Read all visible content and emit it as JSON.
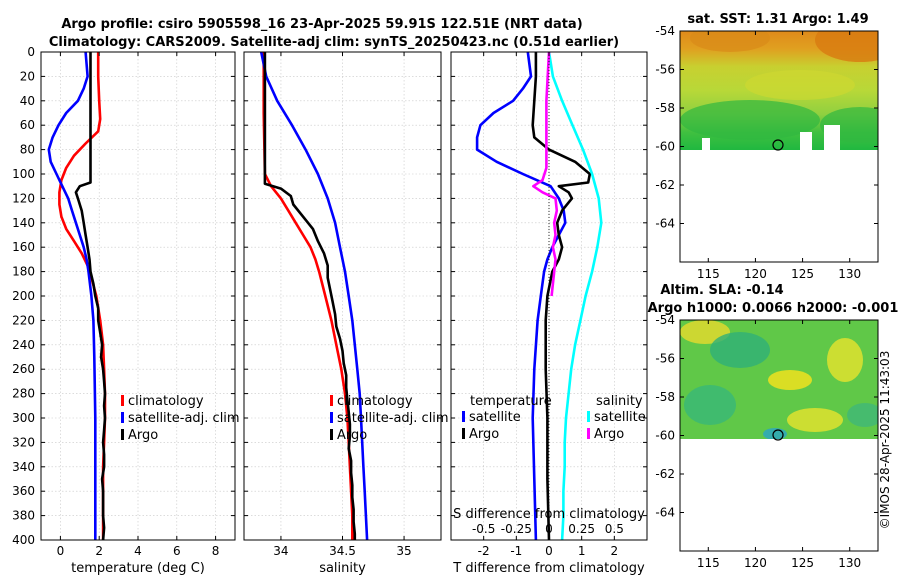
{
  "title_line1": "Argo profile: csiro 5905598_16 23-Apr-2025 59.91S 122.51E (NRT data)",
  "title_line2": "Climatology: CARS2009. Satellite-adj clim: synTS_20250423.nc (0.51d earlier)",
  "credit": "©IMOS 28-Apr-2025 11:43:03",
  "colors": {
    "climatology": "#ff0000",
    "satellite": "#0000ff",
    "argo": "#000000",
    "sat_salinity": "#00ffff",
    "argo_salinity": "#ff00ff"
  },
  "chart_data": [
    {
      "id": "temperature",
      "type": "line",
      "xlabel": "temperature (deg C)",
      "ylabel": "",
      "xlim": [
        -1,
        9
      ],
      "ylim": [
        400,
        0
      ],
      "xticks": [
        0,
        2,
        4,
        6,
        8
      ],
      "xtick_labels": [
        "0",
        "2",
        "4",
        "6",
        "8"
      ],
      "yticks": [
        0,
        20,
        40,
        60,
        80,
        100,
        120,
        140,
        160,
        180,
        200,
        220,
        240,
        260,
        280,
        300,
        320,
        340,
        360,
        380,
        400
      ],
      "ytick_labels": [
        "0",
        "20",
        "40",
        "60",
        "80",
        "100",
        "120",
        "140",
        "160",
        "180",
        "200",
        "220",
        "240",
        "260",
        "280",
        "300",
        "320",
        "340",
        "360",
        "380",
        "400"
      ],
      "grid": true,
      "legend_position": "bottom-right",
      "series": [
        {
          "name": "climatology",
          "color": "#ff0000",
          "depth": [
            0,
            20,
            40,
            55,
            65,
            75,
            85,
            95,
            105,
            115,
            125,
            135,
            145,
            155,
            165,
            175,
            185,
            200,
            220,
            240,
            260,
            280,
            300,
            320,
            340,
            360,
            380,
            400
          ],
          "values": [
            1.95,
            1.95,
            2.0,
            2.05,
            1.95,
            1.3,
            0.7,
            0.3,
            0.05,
            -0.05,
            -0.05,
            0.05,
            0.3,
            0.7,
            1.1,
            1.4,
            1.6,
            1.85,
            2.05,
            2.2,
            2.25,
            2.3,
            2.3,
            2.25,
            2.2,
            2.2,
            2.2,
            2.2
          ]
        },
        {
          "name": "satellite-adj. clim",
          "color": "#0000ff",
          "depth": [
            0,
            10,
            20,
            30,
            40,
            50,
            60,
            70,
            80,
            90,
            100,
            110,
            120,
            130,
            140,
            150,
            160,
            170,
            180,
            200,
            220,
            250,
            300,
            350,
            400
          ],
          "values": [
            1.3,
            1.35,
            1.4,
            1.2,
            0.9,
            0.3,
            -0.1,
            -0.4,
            -0.6,
            -0.5,
            -0.2,
            0.1,
            0.4,
            0.6,
            0.8,
            1.0,
            1.2,
            1.35,
            1.45,
            1.6,
            1.7,
            1.75,
            1.8,
            1.8,
            1.8
          ]
        },
        {
          "name": "Argo",
          "color": "#000000",
          "depth": [
            0,
            20,
            40,
            60,
            80,
            100,
            107,
            110,
            115,
            120,
            130,
            140,
            150,
            160,
            170,
            180,
            190,
            200,
            210,
            220,
            230,
            240,
            250,
            260,
            270,
            280,
            290,
            300,
            310,
            320,
            330,
            340,
            350,
            360,
            370,
            380,
            390,
            400
          ],
          "values": [
            1.55,
            1.55,
            1.55,
            1.55,
            1.55,
            1.55,
            1.55,
            1.0,
            0.8,
            0.9,
            1.1,
            1.2,
            1.3,
            1.4,
            1.5,
            1.55,
            1.7,
            1.8,
            1.95,
            1.95,
            2.05,
            2.15,
            2.1,
            2.2,
            2.25,
            2.3,
            2.25,
            2.3,
            2.25,
            2.2,
            2.25,
            2.25,
            2.15,
            2.2,
            2.2,
            2.2,
            2.25,
            2.2
          ]
        }
      ]
    },
    {
      "id": "salinity",
      "type": "line",
      "xlabel": "salinity",
      "xlim": [
        33.7,
        35.3
      ],
      "ylim": [
        400,
        0
      ],
      "xticks": [
        34,
        34.5,
        35
      ],
      "xtick_labels": [
        "34",
        "34.5",
        "35"
      ],
      "grid": true,
      "legend_position": "bottom-right",
      "series": [
        {
          "name": "climatology",
          "color": "#ff0000",
          "depth": [
            0,
            50,
            100,
            110,
            120,
            130,
            140,
            150,
            160,
            170,
            180,
            200,
            220,
            240,
            260,
            280,
            300,
            320,
            340,
            360,
            380,
            400
          ],
          "values": [
            33.86,
            33.86,
            33.87,
            33.92,
            34.0,
            34.06,
            34.12,
            34.18,
            34.24,
            34.28,
            34.31,
            34.36,
            34.41,
            34.45,
            34.49,
            34.52,
            34.54,
            34.55,
            34.56,
            34.57,
            34.58,
            34.58
          ]
        },
        {
          "name": "satellite-adj. clim",
          "color": "#0000ff",
          "depth": [
            0,
            20,
            40,
            60,
            80,
            100,
            120,
            140,
            160,
            180,
            200,
            220,
            240,
            260,
            280,
            300,
            320,
            340,
            360,
            380,
            400
          ],
          "values": [
            33.84,
            33.88,
            33.97,
            34.09,
            34.2,
            34.3,
            34.38,
            34.44,
            34.48,
            34.52,
            34.55,
            34.58,
            34.6,
            34.62,
            34.64,
            34.65,
            34.66,
            34.67,
            34.68,
            34.69,
            34.7
          ]
        },
        {
          "name": "Argo",
          "color": "#000000",
          "depth": [
            0,
            50,
            100,
            108,
            112,
            118,
            125,
            135,
            145,
            155,
            165,
            175,
            185,
            195,
            205,
            215,
            225,
            235,
            245,
            255,
            265,
            275,
            285,
            295,
            305,
            315,
            325,
            335,
            345,
            355,
            365,
            375,
            385,
            395,
            400
          ],
          "values": [
            33.87,
            33.87,
            33.87,
            33.87,
            34.0,
            34.08,
            34.1,
            34.18,
            34.26,
            34.3,
            34.35,
            34.38,
            34.38,
            34.4,
            34.42,
            34.44,
            34.45,
            34.48,
            34.5,
            34.51,
            34.53,
            34.53,
            34.54,
            34.55,
            34.56,
            34.56,
            34.55,
            34.57,
            34.57,
            34.58,
            34.58,
            34.59,
            34.59,
            34.6,
            34.6
          ]
        }
      ]
    },
    {
      "id": "difference",
      "type": "line",
      "xlabel": "T difference from climatology",
      "top_label": "S difference from climatology",
      "xlim": [
        -3,
        3
      ],
      "ylim": [
        400,
        0
      ],
      "xticks": [
        -2,
        -1,
        0,
        1,
        2
      ],
      "xtick_labels": [
        "-2",
        "-1",
        "0",
        "1",
        "2"
      ],
      "top_ticks": [
        -0.5,
        -0.25,
        0,
        0.25,
        0.5
      ],
      "top_tick_labels": [
        "-0.5",
        "-0.25",
        "0",
        "0.25",
        "0.5"
      ],
      "grid": true,
      "legend_groups": [
        {
          "title": "temperature",
          "entries": [
            "satellite",
            "Argo"
          ]
        },
        {
          "title": "salinity",
          "entries": [
            "satellite",
            "Argo"
          ]
        }
      ],
      "series": [
        {
          "name": "temperature satellite",
          "color": "#0000ff",
          "depth": [
            0,
            10,
            20,
            30,
            40,
            50,
            60,
            70,
            80,
            90,
            100,
            110,
            120,
            130,
            140,
            150,
            160,
            170,
            180,
            200,
            220,
            260,
            300,
            350,
            400
          ],
          "values": [
            -0.65,
            -0.6,
            -0.55,
            -0.8,
            -1.1,
            -1.7,
            -2.1,
            -2.2,
            -2.2,
            -1.6,
            -0.8,
            0.05,
            0.3,
            0.45,
            0.5,
            0.3,
            0.1,
            -0.05,
            -0.15,
            -0.25,
            -0.35,
            -0.45,
            -0.5,
            -0.45,
            -0.4
          ]
        },
        {
          "name": "temperature Argo",
          "color": "#000000",
          "depth": [
            0,
            20,
            40,
            60,
            70,
            80,
            90,
            100,
            107,
            110,
            115,
            120,
            130,
            140,
            150,
            160,
            170,
            180,
            200,
            220,
            260,
            300,
            350,
            400
          ],
          "values": [
            -0.4,
            -0.4,
            -0.45,
            -0.5,
            -0.45,
            0.0,
            0.8,
            1.25,
            1.2,
            0.3,
            0.6,
            0.7,
            0.4,
            0.25,
            0.3,
            0.4,
            0.3,
            0.1,
            -0.05,
            -0.1,
            -0.1,
            -0.05,
            -0.05,
            0.0
          ]
        },
        {
          "name": "salinity satellite",
          "color": "#00ffff",
          "depth": [
            0,
            20,
            40,
            60,
            80,
            100,
            120,
            140,
            160,
            180,
            200,
            220,
            240,
            260,
            280,
            300,
            320,
            340,
            360,
            380,
            400
          ],
          "values": [
            0.0,
            0.03,
            0.1,
            0.18,
            0.26,
            0.33,
            0.38,
            0.4,
            0.37,
            0.33,
            0.28,
            0.24,
            0.2,
            0.17,
            0.15,
            0.13,
            0.12,
            0.12,
            0.11,
            0.11,
            0.1
          ]
        },
        {
          "name": "salinity Argo",
          "color": "#ff00ff",
          "depth": [
            0,
            20,
            40,
            60,
            80,
            95,
            105,
            110,
            115,
            120,
            130,
            140,
            150,
            160,
            170,
            180,
            190,
            200
          ],
          "values": [
            0.0,
            -0.01,
            -0.02,
            -0.02,
            -0.02,
            -0.02,
            -0.05,
            -0.12,
            -0.05,
            0.05,
            0.06,
            0.04,
            0.05,
            0.03,
            0.05,
            0.04,
            0.03,
            0.02
          ]
        }
      ]
    },
    {
      "id": "sst_map",
      "type": "heatmap",
      "title": "sat. SST: 1.31 Argo: 1.49",
      "xlim": [
        112,
        133
      ],
      "ylim": [
        -66,
        -54
      ],
      "xticks": [
        115,
        120,
        125,
        130
      ],
      "xtick_labels": [
        "115",
        "120",
        "125",
        "130"
      ],
      "yticks": [
        -54,
        -56,
        -58,
        -60,
        -62,
        -64
      ],
      "ytick_labels": [
        "-54",
        "-56",
        "-58",
        "-60",
        "-62",
        "-64"
      ],
      "argo_position": [
        122.51,
        -59.91
      ],
      "data_extent_lat": [
        -60.2,
        -54
      ]
    },
    {
      "id": "sla_map",
      "type": "heatmap",
      "title_line1": "Altim. SLA: -0.14",
      "title_line2": "Argo h1000: 0.0066 h2000: -0.001",
      "xlim": [
        112,
        133
      ],
      "ylim": [
        -66,
        -54
      ],
      "xticks": [
        115,
        120,
        125,
        130
      ],
      "xtick_labels": [
        "115",
        "120",
        "125",
        "130"
      ],
      "yticks": [
        -54,
        -56,
        -58,
        -60,
        -62,
        -64
      ],
      "ytick_labels": [
        "-54",
        "-56",
        "-58",
        "-60",
        "-62",
        "-64"
      ],
      "argo_position": [
        122.51,
        -59.91
      ],
      "data_extent_lat": [
        -60.2,
        -54
      ]
    }
  ]
}
